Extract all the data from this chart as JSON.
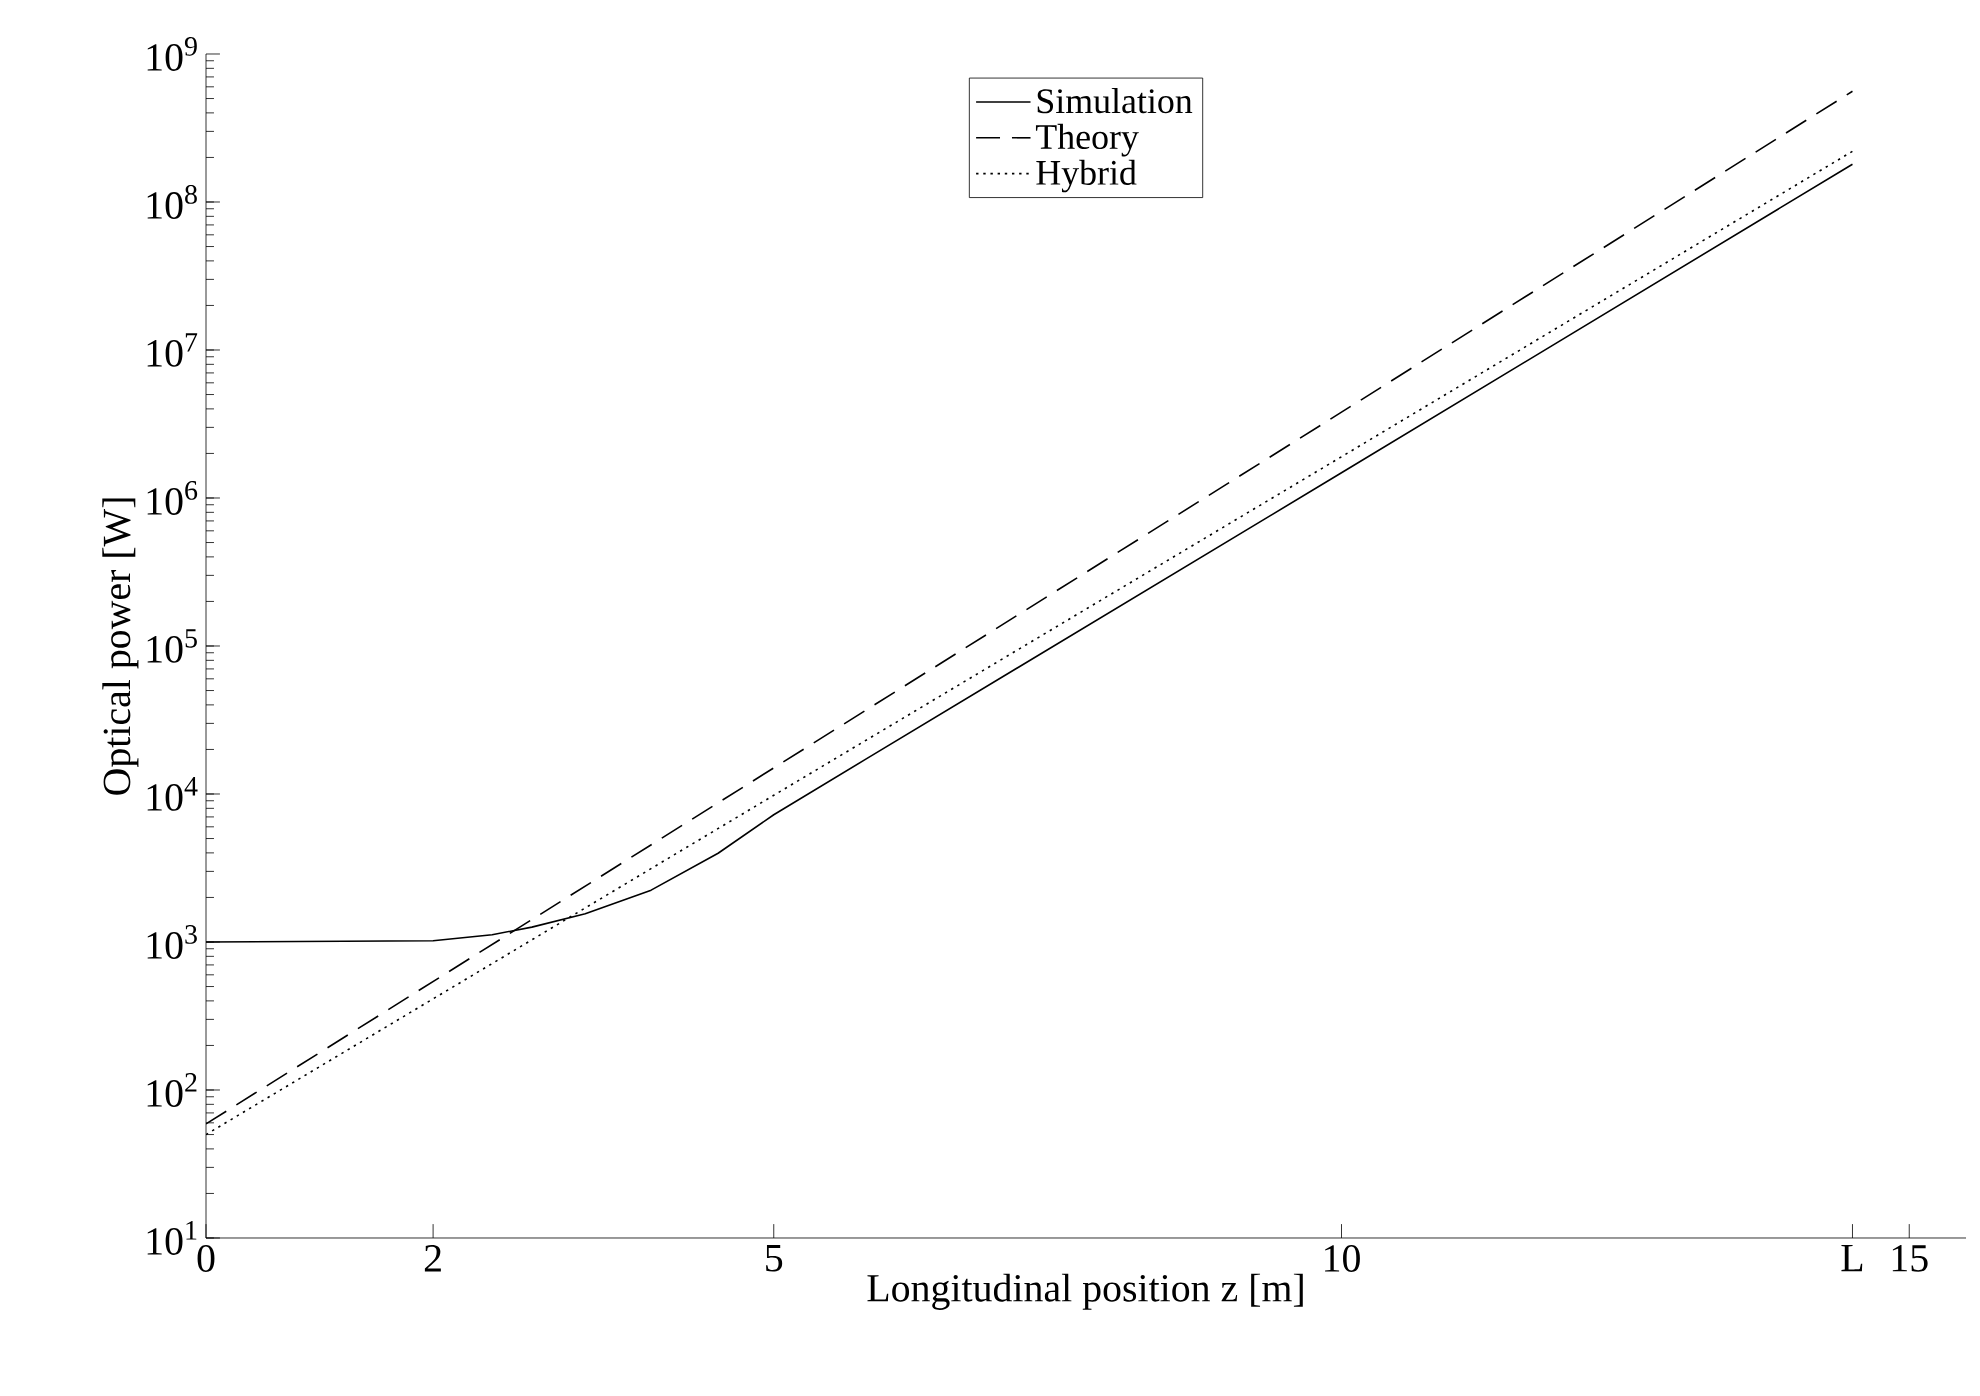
{
  "chart_data": {
    "type": "line",
    "xlabel": "Longitudinal position z [m]",
    "ylabel": "Optical power [W]",
    "log": "y",
    "xlim": [
      0,
      15.5
    ],
    "ylim": [
      10,
      1000000000
    ],
    "xticks": [
      0,
      2,
      5,
      10,
      {
        "value": 14.5,
        "label": "L"
      },
      15
    ],
    "yticks": [
      {
        "value": 10,
        "label": "10$^{1}$"
      },
      {
        "value": 100,
        "label": "10$^{2}$"
      },
      {
        "value": 1000,
        "label": "10$^{3}$"
      },
      {
        "value": 10000,
        "label": "10$^{4}$"
      },
      {
        "value": 100000,
        "label": "10$^{5}$"
      },
      {
        "value": 1000000,
        "label": "10$^{6}$"
      },
      {
        "value": 10000000,
        "label": "10$^{7}$"
      },
      {
        "value": 100000000,
        "label": "10$^{8}$"
      },
      {
        "value": 1000000000,
        "label": "10$^{9}$"
      }
    ],
    "legend": "top",
    "grid": false,
    "marker": "none",
    "series": [
      {
        "name": "Simulation",
        "color": "#000000",
        "line_style": "solid",
        "x": [
          0,
          2,
          2.52,
          2.87,
          3.34,
          3.92,
          4.51,
          5.0,
          5.8,
          10,
          14.5
        ],
        "values": [
          1000,
          1020,
          1120,
          1260,
          1550,
          2240,
          3980,
          7240,
          17000,
          1480000,
          180000000
        ]
      },
      {
        "name": "Theory",
        "color": "#000000",
        "line_style": "dashed",
        "x": [
          0,
          5,
          10,
          14.5
        ],
        "values": [
          59,
          15000,
          3800000,
          560000000
        ]
      },
      {
        "name": "Hybrid",
        "color": "#000000",
        "line_style": "dotted",
        "x": [
          0,
          5,
          10,
          14.5
        ],
        "values": [
          50,
          9800,
          1900000,
          220000000
        ]
      }
    ]
  }
}
